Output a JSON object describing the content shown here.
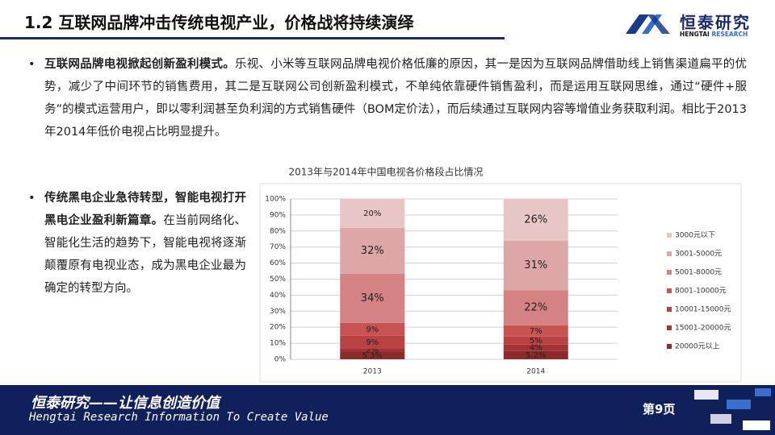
{
  "header": {
    "title": "1.2 互联网品牌冲击传统电视产业，价格战将持续演绎",
    "logo_name": "恒泰研究",
    "logo_sub_a": "HENGTAI",
    "logo_sub_b": "RESEARCH"
  },
  "bullets": [
    {
      "lead": "互联网品牌电视掀起创新盈利模式。",
      "text": "乐视、小米等互联网品牌电视价格低廉的原因，其一是因为互联网品牌借助线上销售渠道扁平的优势，减少了中间环节的销售费用，其二是互联网公司创新盈利模式，不单纯依靠硬件销售盈利，而是运用互联网思维，通过“硬件+服务”的模式运营用户，即以零利润甚至负利润的方式销售硬件（BOM定价法），而后续通过互联网内容等增值业务获取利润。相比于2013年2014年低价电视占比明显提升。"
    },
    {
      "lead": "传统黑电企业急待转型，智能电视打开黑电企业盈利新篇章。",
      "text": "在当前网络化、智能化生活的趋势下，智能电视将逐渐颠覆原有电视业态，成为黑电企业最为确定的转型方向。"
    }
  ],
  "chart_data": {
    "type": "bar",
    "stacking": "percent",
    "title": "2013年与2014年中国电视各价格段占比情况",
    "categories": [
      "2013",
      "2014"
    ],
    "series": [
      {
        "name": "20000元以上",
        "color": "#8b2b2b",
        "values": [
          5.3,
          5.2
        ],
        "value_labels": [
          "5.3%",
          "5.2%"
        ]
      },
      {
        "name": "15001-20000元",
        "color": "#a33434",
        "values": [
          2,
          4
        ],
        "value_labels": [
          "2%",
          "4%"
        ]
      },
      {
        "name": "10001-15000元",
        "color": "#b94242",
        "values": [
          9,
          5
        ],
        "value_labels": [
          "9%",
          "5%"
        ]
      },
      {
        "name": "8001-10000元",
        "color": "#c95252",
        "values": [
          9,
          7
        ],
        "value_labels": [
          "9%",
          "7%"
        ]
      },
      {
        "name": "5001-8000元",
        "color": "#d48282",
        "values": [
          34,
          22
        ],
        "value_labels": [
          "34%",
          "22%"
        ]
      },
      {
        "name": "3001-5000元",
        "color": "#dea7a7",
        "values": [
          32,
          31
        ],
        "value_labels": [
          "32%",
          "31%"
        ]
      },
      {
        "name": "3000元以下",
        "color": "#e8c6c6",
        "values": [
          20,
          26
        ],
        "value_labels": [
          "20%",
          "26%"
        ]
      }
    ],
    "ylim": [
      0,
      100
    ],
    "yticks": [
      {
        "value": 0,
        "label": "0%"
      },
      {
        "value": 10,
        "label": "10%"
      },
      {
        "value": 20,
        "label": "20%"
      },
      {
        "value": 30,
        "label": "30%"
      },
      {
        "value": 40,
        "label": "40%"
      },
      {
        "value": 50,
        "label": "50%"
      },
      {
        "value": 60,
        "label": "60%"
      },
      {
        "value": 70,
        "label": "70%"
      },
      {
        "value": 80,
        "label": "80%"
      },
      {
        "value": 90,
        "label": "90%"
      },
      {
        "value": 100,
        "label": "100%"
      }
    ],
    "grid": true,
    "legend": "right"
  },
  "footer": {
    "slogan": "恒泰研究——让信息创造价值",
    "slogan_en": "Hengtai Research Information To Create Value",
    "page": "第9页"
  }
}
